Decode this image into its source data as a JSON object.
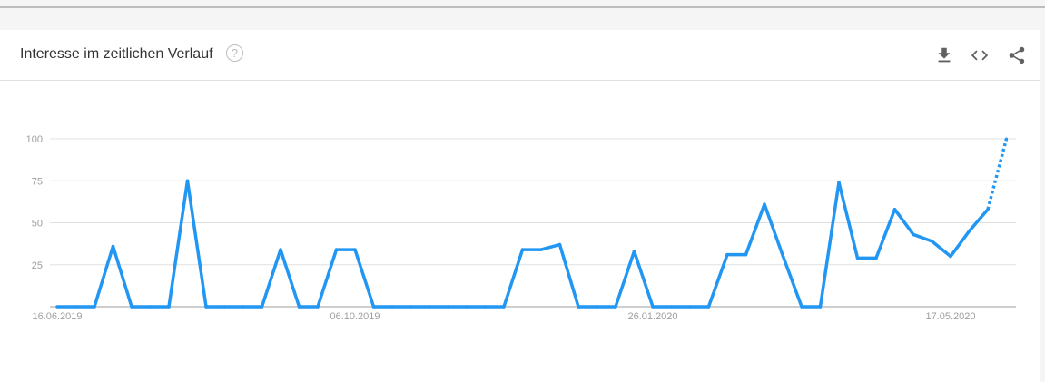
{
  "header": {
    "title": "Interesse im zeitlichen Verlauf",
    "help_icon": "help-circle-icon",
    "actions": [
      {
        "name": "download-button",
        "icon": "download-icon"
      },
      {
        "name": "embed-button",
        "icon": "code-icon"
      },
      {
        "name": "share-button",
        "icon": "share-icon"
      }
    ]
  },
  "chart_data": {
    "type": "line",
    "title": "",
    "xlabel": "",
    "ylabel": "",
    "ylim": [
      0,
      100
    ],
    "yticks": [
      "100",
      "75",
      "50",
      "25"
    ],
    "x_tick_labels": [
      {
        "label": "16.06.2019",
        "index": 0
      },
      {
        "label": "06.10.2019",
        "index": 16
      },
      {
        "label": "26.01.2020",
        "index": 32
      },
      {
        "label": "17.05.2020",
        "index": 48
      }
    ],
    "grid": true,
    "line_color": "#2196f3",
    "partial_last_point": true,
    "values": [
      0,
      0,
      0,
      36,
      0,
      0,
      0,
      75,
      0,
      0,
      0,
      0,
      34,
      0,
      0,
      34,
      34,
      0,
      0,
      0,
      0,
      0,
      0,
      0,
      0,
      34,
      34,
      37,
      0,
      0,
      0,
      33,
      0,
      0,
      0,
      0,
      31,
      31,
      61,
      30,
      0,
      0,
      74,
      29,
      29,
      58,
      43,
      39,
      30,
      45,
      58,
      100
    ]
  }
}
